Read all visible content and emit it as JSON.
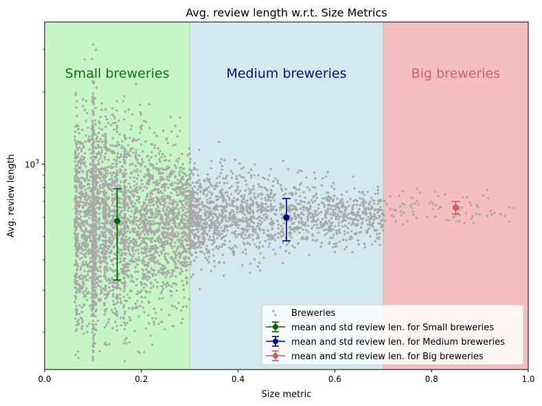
{
  "chart_data": {
    "type": "scatter",
    "title": "Avg. review length w.r.t. Size Metrics",
    "xlabel": "Size metric",
    "ylabel": "Avg. review length",
    "xlim": [
      0.0,
      1.0
    ],
    "ylim": [
      140,
      3900
    ],
    "yscale": "log",
    "xticks": [
      "0.0",
      "0.2",
      "0.4",
      "0.6",
      "0.8",
      "1.0"
    ],
    "yticks": [
      {
        "value": 1000,
        "base": "10",
        "exp": "3"
      }
    ],
    "regions": [
      {
        "label": "Small breweries",
        "x0": 0.0,
        "x1": 0.3,
        "fill": "#c6f5c6",
        "text_color": "#0a7a0a"
      },
      {
        "label": "Medium breweries",
        "x0": 0.3,
        "x1": 0.7,
        "fill": "#d3e9f0",
        "text_color": "#0d0d8c"
      },
      {
        "label": "Big breweries",
        "x0": 0.7,
        "x1": 1.0,
        "fill": "#f5bfbf",
        "text_color": "#d45f5f"
      }
    ],
    "series": [
      {
        "name": "Breweries",
        "kind": "scatter",
        "color": "#a9a9a9",
        "approximate": true
      },
      {
        "name": "mean and std review len. for Small breweries",
        "kind": "errorbar",
        "color": "#006400",
        "marker": "circle",
        "x": 0.15,
        "mean": 580,
        "low": 330,
        "high": 790
      },
      {
        "name": "mean and std review len. for Medium breweries",
        "kind": "errorbar",
        "color": "#00008b",
        "marker": "circle",
        "x": 0.5,
        "mean": 600,
        "low": 480,
        "high": 720
      },
      {
        "name": "mean and std review len. for Big breweries",
        "kind": "errorbar",
        "color": "#cd5c5c",
        "marker": "circle",
        "x": 0.85,
        "mean": 660,
        "low": 620,
        "high": 700
      }
    ],
    "legend_position": "lower right",
    "grid": false
  }
}
